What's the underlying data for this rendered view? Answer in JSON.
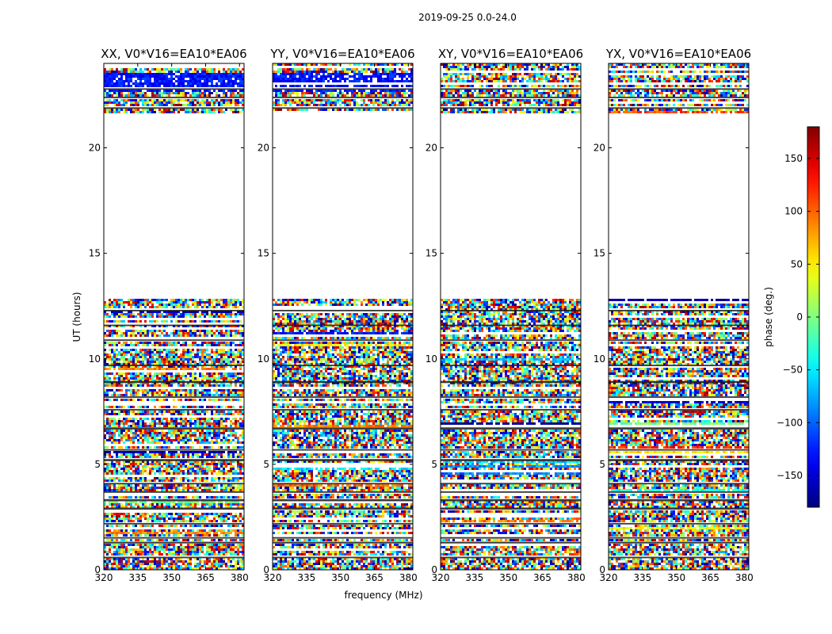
{
  "chart_data": {
    "type": "heatmap",
    "suptitle": "2019-09-25 0.0-24.0",
    "xlabel": "frequency (MHz)",
    "ylabel": "UT (hours)",
    "xlim": [
      320,
      382
    ],
    "ylim": [
      0,
      24
    ],
    "xticks": [
      320,
      335,
      350,
      365,
      380
    ],
    "yticks": [
      0,
      5,
      10,
      15,
      20
    ],
    "panels": [
      {
        "title": "XX, V0*V16=EA10*EA06",
        "strong_phase_top": true
      },
      {
        "title": "YY, V0*V16=EA10*EA06",
        "strong_phase_top": true
      },
      {
        "title": "XY, V0*V16=EA10*EA06",
        "strong_phase_top": false
      },
      {
        "title": "YX, V0*V16=EA10*EA06",
        "strong_phase_top": false
      }
    ],
    "no_data_ranges_hours": [
      [
        12.8,
        21.6
      ]
    ],
    "flag_bands_hours": [
      [
        0.55,
        0.62
      ],
      [
        1.25,
        1.33
      ],
      [
        1.48,
        1.55
      ],
      [
        2.15,
        2.22
      ],
      [
        2.85,
        2.95
      ],
      [
        3.25,
        3.35
      ],
      [
        3.65,
        3.72
      ],
      [
        4.05,
        4.12
      ],
      [
        5.15,
        5.25
      ],
      [
        5.65,
        5.72
      ],
      [
        6.65,
        6.75
      ],
      [
        7.55,
        7.62
      ],
      [
        8.15,
        8.22
      ],
      [
        8.85,
        8.95
      ],
      [
        9.65,
        9.72
      ],
      [
        10.85,
        10.92
      ],
      [
        11.55,
        11.62
      ],
      [
        12.25,
        12.32
      ],
      [
        21.85,
        21.92
      ],
      [
        22.35,
        22.42
      ],
      [
        22.75,
        22.82
      ]
    ],
    "colorbar": {
      "label": "phase (deg.)",
      "range": [
        -180,
        180
      ],
      "ticks": [
        -150,
        -100,
        -50,
        0,
        50,
        100,
        150
      ],
      "tick_labels": [
        "−150",
        "−100",
        "−50",
        "0",
        "50",
        "100",
        "150"
      ],
      "colormap": "jet"
    }
  }
}
